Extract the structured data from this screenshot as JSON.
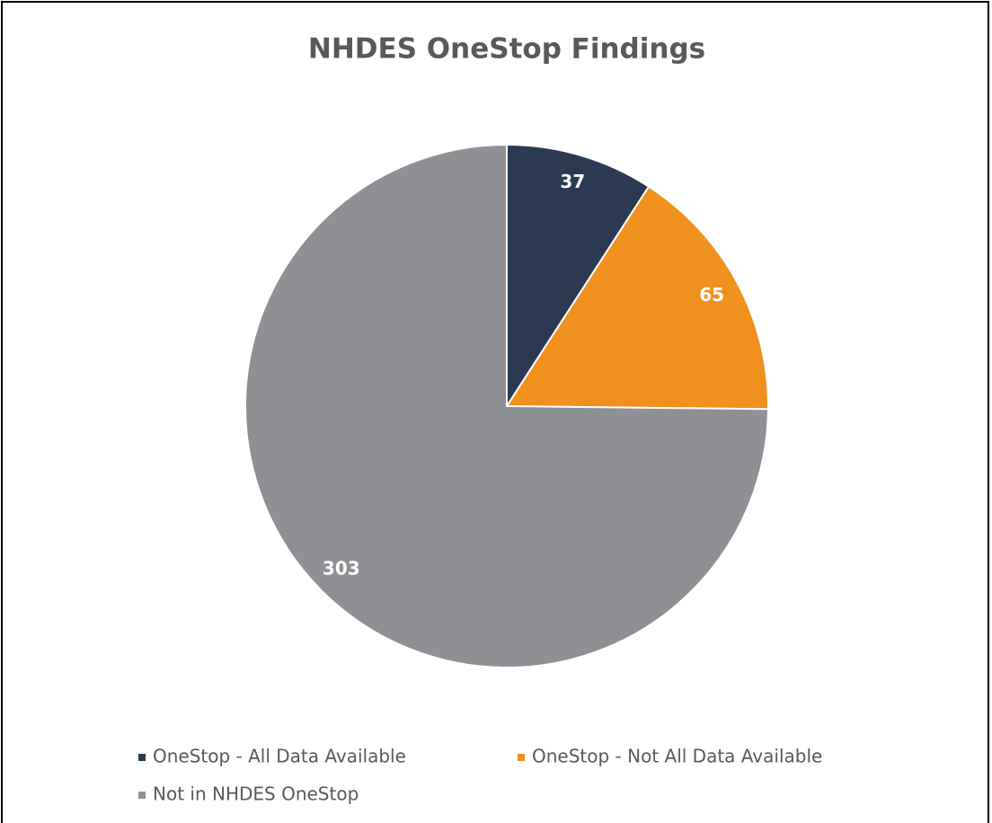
{
  "chart_data": {
    "type": "pie",
    "title": "NHDES OneStop Findings",
    "categories": [
      "OneStop - All Data Available",
      "OneStop - Not All Data Available",
      "Not in NHDES OneStop"
    ],
    "values": [
      37,
      65,
      303
    ],
    "colors": [
      "#2b3a52",
      "#f0911e",
      "#8e9094"
    ],
    "legend": "bottom"
  }
}
